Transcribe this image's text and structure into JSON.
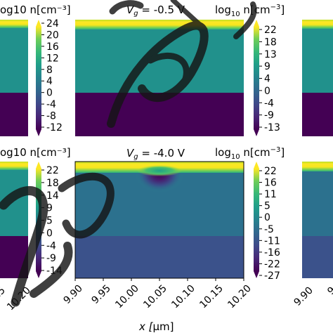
{
  "chart_data": [
    {
      "type": "heatmap",
      "panel": "top-left (cropped)",
      "colorbar_label": "log10 n[cm^-3]",
      "colorbar_label_visible": "og10 n[cm⁻³]",
      "colorbar_ticks": [
        "24",
        "20",
        "16",
        "12",
        "8",
        "4",
        "0",
        "-4",
        "-8",
        "-12"
      ],
      "layers": [
        {
          "region": "surface",
          "level": 22
        },
        {
          "region": "middle",
          "level": 9
        },
        {
          "region": "bottom",
          "level": -12
        }
      ]
    },
    {
      "type": "heatmap",
      "panel": "top-center",
      "title_prefix": "V",
      "title_sub": "g",
      "title_rest": " = -0.5 V",
      "colorbar_label_prefix": "log",
      "colorbar_label_sub": "10",
      "colorbar_label_rest": " n[cm",
      "colorbar_label_sup": "−3",
      "colorbar_label_close": "]",
      "colorbar_ticks": [
        "22",
        "18",
        "13",
        "9",
        "4",
        "0",
        "-4",
        "-9",
        "-13"
      ],
      "layers": [
        {
          "region": "surface",
          "level": 22
        },
        {
          "region": "middle",
          "level": 9
        },
        {
          "region": "bottom",
          "level": -13
        }
      ]
    },
    {
      "type": "heatmap",
      "panel": "bottom-left (cropped)",
      "colorbar_label_visible": "og10 n[cm⁻³]",
      "colorbar_ticks": [
        "22",
        "18",
        "14",
        "9",
        "5",
        "0",
        "-4",
        "-9",
        "-14"
      ],
      "x_ticks_visible": [
        "15",
        "10.20"
      ]
    },
    {
      "type": "heatmap",
      "panel": "bottom-center",
      "title_prefix": "V",
      "title_sub": "g",
      "title_rest": " = -4.0 V",
      "colorbar_label_prefix": "log",
      "colorbar_label_sub": "10",
      "colorbar_label_rest": " n[cm",
      "colorbar_label_sup": "−3",
      "colorbar_label_close": "]",
      "colorbar_ticks": [
        "22",
        "16",
        "11",
        "5",
        "0",
        "-5",
        "-11",
        "-16",
        "-22",
        "-27"
      ],
      "xlabel_prefix": "x [",
      "xlabel_mu": "μ",
      "xlabel_rest": "m]",
      "x": [
        "9.90",
        "9.95",
        "10.00",
        "10.05",
        "10.10",
        "10.15",
        "10.20"
      ],
      "xlim": [
        9.9,
        10.2
      ],
      "depletion_center_x": 10.05,
      "layers": [
        {
          "region": "surface",
          "level": 22
        },
        {
          "region": "middle",
          "level": 5
        },
        {
          "region": "bottom",
          "level": -8
        }
      ]
    },
    {
      "type": "heatmap",
      "panel": "bottom-right (cropped)",
      "x_ticks_visible": [
        "9.90",
        "9"
      ]
    }
  ],
  "colors": {
    "viridis_yellow": "#fde725",
    "viridis_green": "#5ec962",
    "viridis_teal": "#21918c",
    "viridis_blue": "#3b528b",
    "viridis_purple": "#440154"
  }
}
